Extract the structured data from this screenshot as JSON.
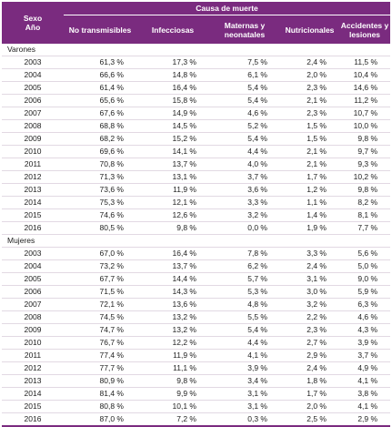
{
  "header": {
    "sex_label": "Sexo",
    "year_label": "Año",
    "span_title": "Causa de muerte",
    "columns": [
      "No transmisibles",
      "Infecciosas",
      "Maternas y neonatales",
      "Nutricionales",
      "Accidentes y lesiones"
    ]
  },
  "sections": [
    {
      "label": "Varones",
      "rows": [
        [
          "2003",
          "61,3 %",
          "17,3 %",
          "7,5 %",
          "2,4 %",
          "11,5 %"
        ],
        [
          "2004",
          "66,6 %",
          "14,8 %",
          "6,1 %",
          "2,0 %",
          "10,4 %"
        ],
        [
          "2005",
          "61,4 %",
          "16,4 %",
          "5,4 %",
          "2,3 %",
          "14,6 %"
        ],
        [
          "2006",
          "65,6 %",
          "15,8 %",
          "5,4 %",
          "2,1 %",
          "11,2 %"
        ],
        [
          "2007",
          "67,6 %",
          "14,9 %",
          "4,6 %",
          "2,3 %",
          "10,7 %"
        ],
        [
          "2008",
          "68,8 %",
          "14,5 %",
          "5,2 %",
          "1,5 %",
          "10,0 %"
        ],
        [
          "2009",
          "68,2 %",
          "15,2 %",
          "5,4 %",
          "1,5 %",
          "9,8 %"
        ],
        [
          "2010",
          "69,6 %",
          "14,1 %",
          "4,4 %",
          "2,1 %",
          "9,7 %"
        ],
        [
          "2011",
          "70,8 %",
          "13,7 %",
          "4,0 %",
          "2,1 %",
          "9,3 %"
        ],
        [
          "2012",
          "71,3 %",
          "13,1 %",
          "3,7 %",
          "1,7 %",
          "10,2 %"
        ],
        [
          "2013",
          "73,6 %",
          "11,9 %",
          "3,6 %",
          "1,2 %",
          "9,8 %"
        ],
        [
          "2014",
          "75,3 %",
          "12,1 %",
          "3,3 %",
          "1,1 %",
          "8,2 %"
        ],
        [
          "2015",
          "74,6 %",
          "12,6 %",
          "3,2 %",
          "1,4 %",
          "8,1 %"
        ],
        [
          "2016",
          "80,5 %",
          "9,8 %",
          "0,0 %",
          "1,9 %",
          "7,7 %"
        ]
      ]
    },
    {
      "label": "Mujeres",
      "rows": [
        [
          "2003",
          "67,0 %",
          "16,4 %",
          "7,8 %",
          "3,3 %",
          "5,6 %"
        ],
        [
          "2004",
          "73,2 %",
          "13,7 %",
          "6,2 %",
          "2,4 %",
          "5,0 %"
        ],
        [
          "2005",
          "67,7 %",
          "14,4 %",
          "5,7 %",
          "3,1 %",
          "9,0 %"
        ],
        [
          "2006",
          "71,5 %",
          "14,3 %",
          "5,3 %",
          "3,0 %",
          "5,9 %"
        ],
        [
          "2007",
          "72,1 %",
          "13,6 %",
          "4,8 %",
          "3,2 %",
          "6,3 %"
        ],
        [
          "2008",
          "74,5 %",
          "13,2 %",
          "5,5 %",
          "2,2 %",
          "4,6 %"
        ],
        [
          "2009",
          "74,7 %",
          "13,2 %",
          "5,4 %",
          "2,3 %",
          "4,3 %"
        ],
        [
          "2010",
          "76,7 %",
          "12,2 %",
          "4,4 %",
          "2,7 %",
          "3,9 %"
        ],
        [
          "2011",
          "77,4 %",
          "11,9 %",
          "4,1 %",
          "2,9 %",
          "3,7 %"
        ],
        [
          "2012",
          "77,7 %",
          "11,1 %",
          "3,9 %",
          "2,4 %",
          "4,9 %"
        ],
        [
          "2013",
          "80,9 %",
          "9,8 %",
          "3,4 %",
          "1,8 %",
          "4,1 %"
        ],
        [
          "2014",
          "81,4 %",
          "9,9 %",
          "3,1 %",
          "1,7 %",
          "3,8 %"
        ],
        [
          "2015",
          "80,8 %",
          "10,1 %",
          "3,1 %",
          "2,0 %",
          "4,1 %"
        ],
        [
          "2016",
          "87,0 %",
          "7,2 %",
          "0,3 %",
          "2,5 %",
          "2,9 %"
        ]
      ]
    }
  ]
}
